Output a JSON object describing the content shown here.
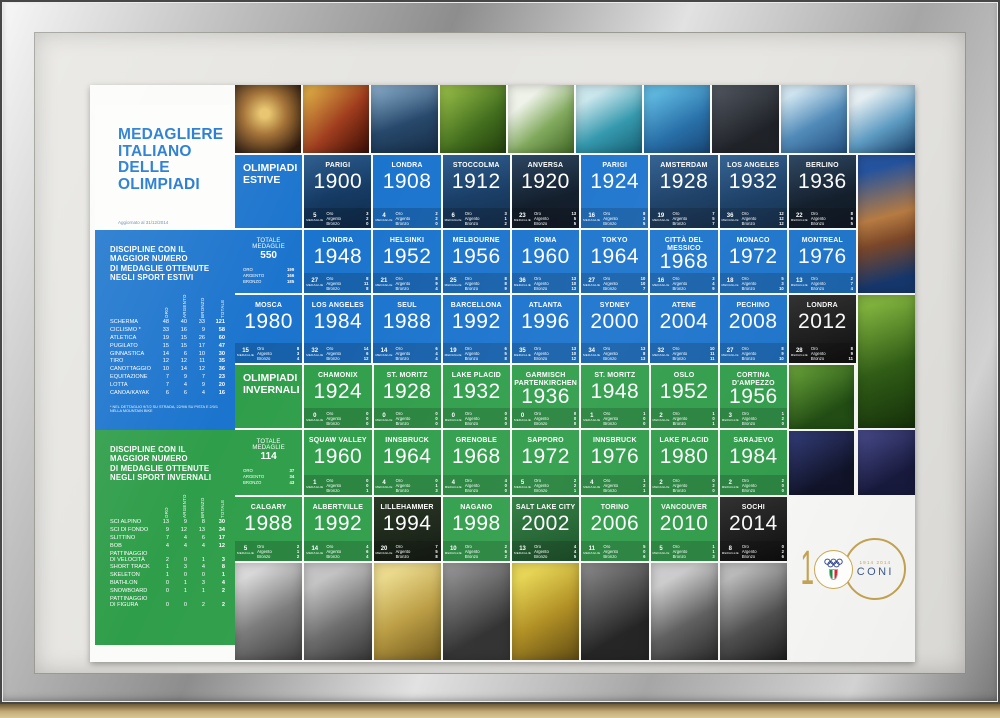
{
  "poster": {
    "title": {
      "lines": [
        "MEDAGLIERE",
        "ITALIANO",
        "DELLE",
        "OLIMPIADI"
      ],
      "updated": "Aggiornato al 31/12/2014"
    },
    "labels": {
      "medaglie": "MEDAGLIE",
      "oro": "Oro",
      "argento": "Argento",
      "bronzo": "Bronzo",
      "oro_u": "ORO",
      "argento_u": "ARGENTO",
      "bronzo_u": "BRONZO",
      "totale_medaglie": "TOTALE MEDAGLIE"
    },
    "summer_disciplines": {
      "heading": [
        "DISCIPLINE CON IL",
        "MAGGIOR NUMERO",
        "DI MEDAGLIE OTTENUTE",
        "NEGLI SPORT ESTIVI"
      ],
      "columns": [
        "ORO",
        "ARGENTO",
        "BRONZO",
        "TOTALE"
      ],
      "rows": [
        [
          "SCHERMA",
          48,
          40,
          33,
          121
        ],
        [
          "CICLISMO *",
          33,
          16,
          9,
          58
        ],
        [
          "ATLETICA",
          19,
          15,
          26,
          60
        ],
        [
          "PUGILATO",
          15,
          15,
          17,
          47
        ],
        [
          "GINNASTICA",
          14,
          6,
          10,
          30
        ],
        [
          "TIRO",
          12,
          12,
          11,
          35
        ],
        [
          "CANOTTAGGIO",
          10,
          14,
          12,
          36
        ],
        [
          "EQUITAZIONE",
          7,
          9,
          7,
          23
        ],
        [
          "LOTTA",
          7,
          4,
          9,
          20
        ],
        [
          "CANOA/KAYAK",
          6,
          6,
          4,
          16
        ]
      ],
      "footnote": "* NEL DETTAGLIO 9/7/2 SU STRADA, 22/9/6 SU PISTA E 2/0/1 NELLA MOUNTAIN BIKE"
    },
    "winter_disciplines": {
      "heading": [
        "DISCIPLINE CON IL",
        "MAGGIOR NUMERO",
        "DI MEDAGLIE OTTENUTE",
        "NEGLI SPORT INVERNALI"
      ],
      "columns": [
        "ORO",
        "ARGENTO",
        "BRONZO",
        "TOTALE"
      ],
      "rows": [
        [
          "SCI ALPINO",
          13,
          9,
          8,
          30
        ],
        [
          "SCI DI FONDO",
          9,
          12,
          13,
          34
        ],
        [
          "SLITTINO",
          7,
          4,
          6,
          17
        ],
        [
          "BOB",
          4,
          4,
          4,
          12
        ],
        [
          "PATTINAGGIO DI VELOCITÀ",
          2,
          0,
          1,
          3
        ],
        [
          "SHORT TRACK",
          1,
          3,
          4,
          8
        ],
        [
          "SKELETON",
          1,
          0,
          0,
          1
        ],
        [
          "BIATHLON",
          0,
          1,
          3,
          4
        ],
        [
          "SNOWBOARD",
          0,
          1,
          1,
          2
        ],
        [
          "PATTINAGGIO DI FIGURA",
          0,
          0,
          2,
          2
        ]
      ]
    },
    "summer_games": {
      "rows": [
        [
          {
            "t": "h",
            "v": "bl",
            "label": [
              "OLIMPIADI",
              "ESTIVE"
            ]
          },
          {
            "t": "g",
            "v": "pb",
            "city": "PARIGI",
            "year": "1900",
            "med": 5,
            "o": 3,
            "a": 2,
            "b": 0
          },
          {
            "t": "g",
            "v": "bl",
            "city": "LONDRA",
            "year": "1908",
            "med": 4,
            "o": 2,
            "a": 2,
            "b": 0
          },
          {
            "t": "g",
            "v": "pb",
            "city": "STOCCOLMA",
            "year": "1912",
            "med": 6,
            "o": 3,
            "a": 1,
            "b": 2
          },
          {
            "t": "g",
            "v": "pd",
            "city": "ANVERSA",
            "year": "1920",
            "med": 23,
            "o": 13,
            "a": 5,
            "b": 5
          },
          {
            "t": "g",
            "v": "bl",
            "city": "PARIGI",
            "year": "1924",
            "med": 16,
            "o": 8,
            "a": 3,
            "b": 5
          },
          {
            "t": "g",
            "v": "pb",
            "city": "AMSTERDAM",
            "year": "1928",
            "med": 19,
            "o": 7,
            "a": 5,
            "b": 7
          },
          {
            "t": "g",
            "v": "pb",
            "city": "LOS ANGELES",
            "year": "1932",
            "med": 36,
            "o": 12,
            "a": 12,
            "b": 12
          },
          {
            "t": "g",
            "v": "pd",
            "city": "BERLINO",
            "year": "1936",
            "med": 22,
            "o": 8,
            "a": 9,
            "b": 5
          }
        ],
        [
          {
            "t": "tot",
            "v": "bl",
            "total": 550,
            "o": 199,
            "a": 166,
            "b": 185
          },
          {
            "t": "g",
            "v": "bl",
            "city": "LONDRA",
            "year": "1948",
            "med": 27,
            "o": 8,
            "a": 11,
            "b": 8
          },
          {
            "t": "g",
            "v": "bl",
            "city": "HELSINKI",
            "year": "1952",
            "med": 21,
            "o": 8,
            "a": 9,
            "b": 4
          },
          {
            "t": "g",
            "v": "bl",
            "city": "MELBOURNE",
            "year": "1956",
            "med": 25,
            "o": 8,
            "a": 8,
            "b": 9
          },
          {
            "t": "g",
            "v": "bl",
            "city": "ROMA",
            "year": "1960",
            "med": 36,
            "o": 13,
            "a": 10,
            "b": 13
          },
          {
            "t": "g",
            "v": "bl",
            "city": "TOKYO",
            "year": "1964",
            "med": 27,
            "o": 10,
            "a": 10,
            "b": 7
          },
          {
            "t": "g",
            "v": "bl",
            "city": "CITTÀ DEL MESSICO",
            "year": "1968",
            "med": 16,
            "o": 3,
            "a": 4,
            "b": 9
          },
          {
            "t": "g",
            "v": "bl",
            "city": "MONACO",
            "year": "1972",
            "med": 18,
            "o": 5,
            "a": 3,
            "b": 10
          },
          {
            "t": "g",
            "v": "bl",
            "city": "MONTREAL",
            "year": "1976",
            "med": 13,
            "o": 2,
            "a": 7,
            "b": 4
          }
        ],
        [
          {
            "t": "g",
            "v": "bl",
            "city": "MOSCA",
            "year": "1980",
            "med": 15,
            "o": 8,
            "a": 3,
            "b": 4
          },
          {
            "t": "g",
            "v": "bl",
            "city": "LOS ANGELES",
            "year": "1984",
            "med": 32,
            "o": 14,
            "a": 6,
            "b": 12
          },
          {
            "t": "g",
            "v": "bl",
            "city": "SEUL",
            "year": "1988",
            "med": 14,
            "o": 6,
            "a": 4,
            "b": 4
          },
          {
            "t": "g",
            "v": "bl",
            "city": "BARCELLONA",
            "year": "1992",
            "med": 19,
            "o": 6,
            "a": 5,
            "b": 8
          },
          {
            "t": "g",
            "v": "bl",
            "city": "ATLANTA",
            "year": "1996",
            "med": 35,
            "o": 13,
            "a": 10,
            "b": 12
          },
          {
            "t": "g",
            "v": "bl",
            "city": "SYDNEY",
            "year": "2000",
            "med": 34,
            "o": 13,
            "a": 8,
            "b": 13
          },
          {
            "t": "g",
            "v": "bl",
            "city": "ATENE",
            "year": "2004",
            "med": 32,
            "o": 10,
            "a": 11,
            "b": 11
          },
          {
            "t": "g",
            "v": "bl",
            "city": "PECHINO",
            "year": "2008",
            "med": 27,
            "o": 8,
            "a": 9,
            "b": 10
          },
          {
            "t": "g",
            "v": "bk",
            "city": "LONDRA",
            "year": "2012",
            "med": 28,
            "o": 8,
            "a": 9,
            "b": 11
          }
        ]
      ]
    },
    "winter_games": {
      "rows": [
        [
          {
            "t": "h",
            "v": "gr",
            "label": [
              "OLIMPIADI",
              "INVERNALI"
            ]
          },
          {
            "t": "g",
            "v": "gr",
            "city": "CHAMONIX",
            "year": "1924",
            "med": 0,
            "o": 0,
            "a": 0,
            "b": 0
          },
          {
            "t": "g",
            "v": "gr",
            "city": "ST. MORITZ",
            "year": "1928",
            "med": 0,
            "o": 0,
            "a": 0,
            "b": 0
          },
          {
            "t": "g",
            "v": "gr",
            "city": "LAKE PLACID",
            "year": "1932",
            "med": 0,
            "o": 0,
            "a": 0,
            "b": 0
          },
          {
            "t": "g",
            "v": "gr",
            "city": "GARMISCH PARTENKIRCHEN",
            "year": "1936",
            "med": 0,
            "o": 0,
            "a": 0,
            "b": 0
          },
          {
            "t": "g",
            "v": "gr",
            "city": "ST. MORITZ",
            "year": "1948",
            "med": 1,
            "o": 1,
            "a": 0,
            "b": 0
          },
          {
            "t": "g",
            "v": "gr",
            "city": "OSLO",
            "year": "1952",
            "med": 2,
            "o": 1,
            "a": 0,
            "b": 1
          },
          {
            "t": "g",
            "v": "gr",
            "city": "CORTINA D'AMPEZZO",
            "year": "1956",
            "med": 3,
            "o": 1,
            "a": 2,
            "b": 0
          }
        ],
        [
          {
            "t": "tot",
            "v": "gr",
            "total": 114,
            "o": 37,
            "a": 34,
            "b": 43
          },
          {
            "t": "g",
            "v": "gr",
            "city": "SQUAW VALLEY",
            "year": "1960",
            "med": 1,
            "o": 0,
            "a": 0,
            "b": 1
          },
          {
            "t": "g",
            "v": "gr",
            "city": "INNSBRUCK",
            "year": "1964",
            "med": 4,
            "o": 0,
            "a": 1,
            "b": 3
          },
          {
            "t": "g",
            "v": "gr",
            "city": "GRENOBLE",
            "year": "1968",
            "med": 4,
            "o": 4,
            "a": 0,
            "b": 0
          },
          {
            "t": "g",
            "v": "gr",
            "city": "SAPPORO",
            "year": "1972",
            "med": 5,
            "o": 2,
            "a": 2,
            "b": 1
          },
          {
            "t": "g",
            "v": "gr",
            "city": "INNSBRUCK",
            "year": "1976",
            "med": 4,
            "o": 1,
            "a": 2,
            "b": 1
          },
          {
            "t": "g",
            "v": "gr",
            "city": "LAKE PLACID",
            "year": "1980",
            "med": 2,
            "o": 0,
            "a": 2,
            "b": 0
          },
          {
            "t": "g",
            "v": "gr",
            "city": "SARAJEVO",
            "year": "1984",
            "med": 2,
            "o": 2,
            "a": 0,
            "b": 0
          }
        ],
        [
          {
            "t": "g",
            "v": "gr",
            "city": "CALGARY",
            "year": "1988",
            "med": 5,
            "o": 2,
            "a": 1,
            "b": 2
          },
          {
            "t": "g",
            "v": "gr",
            "city": "ALBERTVILLE",
            "year": "1992",
            "med": 14,
            "o": 4,
            "a": 6,
            "b": 4
          },
          {
            "t": "g",
            "v": "pgd",
            "city": "LILLEHAMMER",
            "year": "1994",
            "med": 20,
            "o": 7,
            "a": 5,
            "b": 8
          },
          {
            "t": "g",
            "v": "gr",
            "city": "NAGANO",
            "year": "1998",
            "med": 10,
            "o": 2,
            "a": 6,
            "b": 2
          },
          {
            "t": "g",
            "v": "pg",
            "city": "SALT LAKE CITY",
            "year": "2002",
            "med": 13,
            "o": 4,
            "a": 4,
            "b": 5
          },
          {
            "t": "g",
            "v": "gr",
            "city": "TORINO",
            "year": "2006",
            "med": 11,
            "o": 5,
            "a": 0,
            "b": 6
          },
          {
            "t": "g",
            "v": "gr",
            "city": "VANCOUVER",
            "year": "2010",
            "med": 5,
            "o": 1,
            "a": 1,
            "b": 3
          },
          {
            "t": "g",
            "v": "bk",
            "city": "SOCHI",
            "year": "2014",
            "med": 8,
            "o": 0,
            "a": 2,
            "b": 6
          }
        ]
      ]
    },
    "coni": {
      "one": "1",
      "years": "1914 2014",
      "name": "CONI"
    }
  }
}
